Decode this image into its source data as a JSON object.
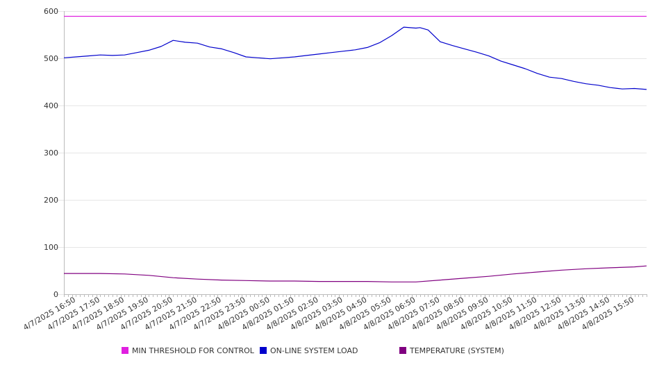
{
  "chart_data": {
    "type": "line",
    "ylim": [
      0,
      600
    ],
    "y_ticks": [
      0,
      100,
      200,
      300,
      400,
      500,
      600
    ],
    "grid": true,
    "legend_position": "bottom",
    "x_tick_labels": [
      "4/7/2025 16:50",
      "4/7/2025 17:50",
      "4/7/2025 18:50",
      "4/7/2025 19:50",
      "4/7/2025 20:50",
      "4/7/2025 21:50",
      "4/7/2025 22:50",
      "4/7/2025 23:50",
      "4/8/2025 00:50",
      "4/8/2025 01:50",
      "4/8/2025 02:50",
      "4/8/2025 03:50",
      "4/8/2025 04:50",
      "4/8/2025 05:50",
      "4/8/2025 06:50",
      "4/8/2025 07:50",
      "4/8/2025 08:50",
      "4/8/2025 09:50",
      "4/8/2025 10:50",
      "4/8/2025 11:50",
      "4/8/2025 12:50",
      "4/8/2025 13:50",
      "4/8/2025 14:50",
      "4/8/2025 15:50"
    ],
    "x_start": "4/7/2025 16:20",
    "x_end": "4/8/2025 16:20",
    "series": [
      {
        "name": "MIN THRESHOLD FOR CONTROL",
        "color": "#e020e0",
        "x": [
          "4/7/2025 16:20",
          "4/8/2025 16:20"
        ],
        "values": [
          589,
          589
        ]
      },
      {
        "name": "ON-LINE SYSTEM LOAD",
        "color": "#0000cc",
        "x": [
          "4/7/2025 16:20",
          "4/7/2025 16:50",
          "4/7/2025 17:20",
          "4/7/2025 17:50",
          "4/7/2025 18:20",
          "4/7/2025 18:50",
          "4/7/2025 19:20",
          "4/7/2025 19:50",
          "4/7/2025 20:20",
          "4/7/2025 20:50",
          "4/7/2025 21:20",
          "4/7/2025 21:50",
          "4/7/2025 22:20",
          "4/7/2025 22:50",
          "4/7/2025 23:20",
          "4/7/2025 23:50",
          "4/8/2025 00:20",
          "4/8/2025 00:50",
          "4/8/2025 01:20",
          "4/8/2025 01:50",
          "4/8/2025 02:20",
          "4/8/2025 02:50",
          "4/8/2025 03:20",
          "4/8/2025 03:50",
          "4/8/2025 04:20",
          "4/8/2025 04:50",
          "4/8/2025 05:20",
          "4/8/2025 05:50",
          "4/8/2025 06:20",
          "4/8/2025 06:50",
          "4/8/2025 07:00",
          "4/8/2025 07:20",
          "4/8/2025 07:50",
          "4/8/2025 08:20",
          "4/8/2025 08:50",
          "4/8/2025 09:20",
          "4/8/2025 09:50",
          "4/8/2025 10:20",
          "4/8/2025 10:50",
          "4/8/2025 11:20",
          "4/8/2025 11:50",
          "4/8/2025 12:20",
          "4/8/2025 12:50",
          "4/8/2025 13:20",
          "4/8/2025 13:50",
          "4/8/2025 14:20",
          "4/8/2025 14:50",
          "4/8/2025 15:20",
          "4/8/2025 15:50",
          "4/8/2025 16:20"
        ],
        "values": [
          501,
          503,
          505,
          507,
          506,
          507,
          512,
          517,
          525,
          538,
          534,
          532,
          524,
          520,
          512,
          503,
          501,
          499,
          501,
          503,
          506,
          509,
          512,
          515,
          518,
          523,
          533,
          548,
          566,
          564,
          565,
          560,
          535,
          527,
          520,
          513,
          505,
          494,
          486,
          478,
          468,
          460,
          457,
          451,
          446,
          443,
          438,
          435,
          436,
          434
        ]
      },
      {
        "name": "TEMPERATURE (SYSTEM)",
        "color": "#800080",
        "x": [
          "4/7/2025 16:20",
          "4/7/2025 17:50",
          "4/7/2025 18:50",
          "4/7/2025 19:50",
          "4/7/2025 20:50",
          "4/7/2025 21:50",
          "4/7/2025 22:50",
          "4/7/2025 23:50",
          "4/8/2025 00:50",
          "4/8/2025 01:50",
          "4/8/2025 02:50",
          "4/8/2025 03:50",
          "4/8/2025 04:50",
          "4/8/2025 05:50",
          "4/8/2025 06:50",
          "4/8/2025 07:50",
          "4/8/2025 08:50",
          "4/8/2025 09:50",
          "4/8/2025 10:50",
          "4/8/2025 11:50",
          "4/8/2025 12:50",
          "4/8/2025 13:50",
          "4/8/2025 14:50",
          "4/8/2025 15:50",
          "4/8/2025 16:20"
        ],
        "values": [
          44,
          44,
          43,
          40,
          35,
          32,
          30,
          29,
          28,
          28,
          27,
          27,
          27,
          26,
          26,
          30,
          34,
          38,
          43,
          47,
          51,
          54,
          56,
          58,
          60
        ]
      }
    ]
  }
}
